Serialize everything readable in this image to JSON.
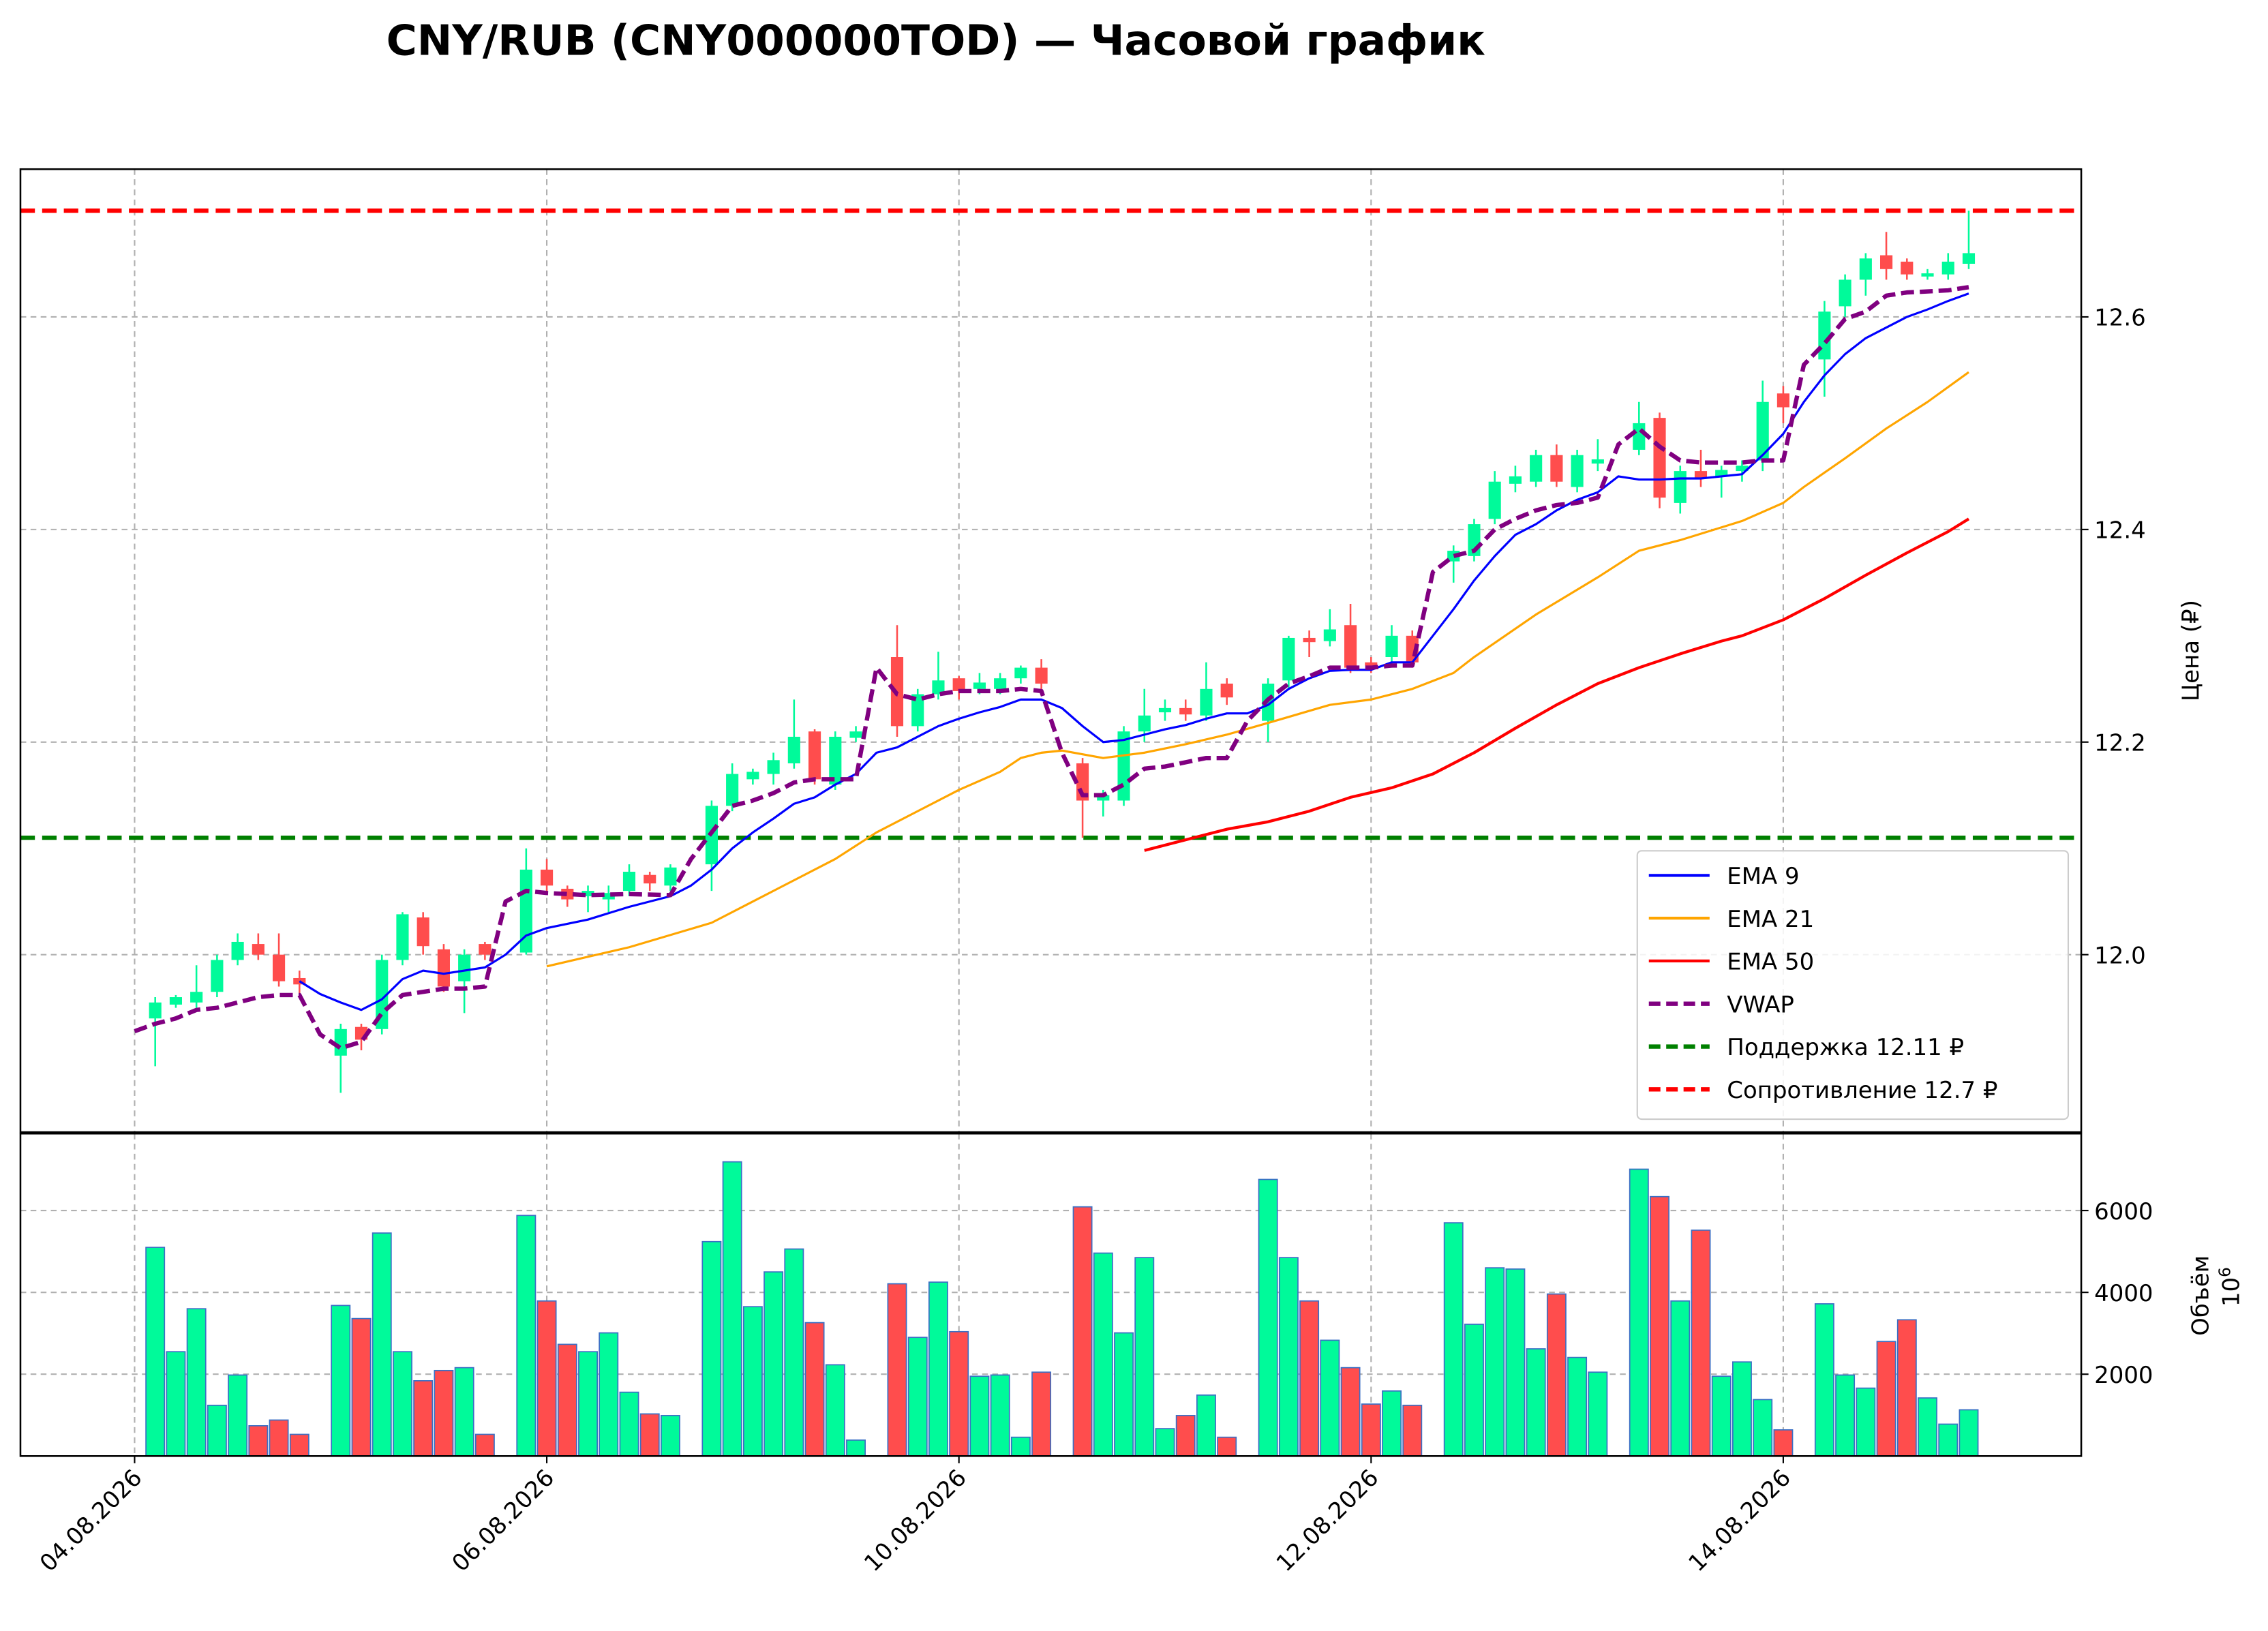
{
  "chart_data": {
    "type": "candlestick",
    "title": "CNY/RUB (CNY000000TOD) — Часовой график",
    "ylabel": "Цена (₽)",
    "x": [
      0,
      1,
      2,
      3,
      4,
      5,
      6,
      7,
      8,
      9,
      10,
      11,
      12,
      13,
      14,
      15,
      16,
      17,
      18,
      19,
      20,
      21,
      22,
      23,
      24,
      25,
      26,
      27,
      28,
      29,
      30,
      31,
      32,
      33,
      34,
      35,
      36,
      37,
      38,
      39,
      40,
      41,
      42,
      43,
      44,
      45,
      46,
      47,
      48,
      49,
      50,
      51,
      52,
      53,
      54,
      55,
      56,
      57,
      58,
      59,
      60,
      61,
      62,
      63,
      64,
      65,
      66,
      67,
      68,
      69,
      70,
      71,
      72,
      73,
      74,
      75,
      76,
      77,
      78,
      79,
      80,
      81,
      82,
      83,
      84,
      85,
      86,
      87,
      88,
      89
    ],
    "xlim": [
      -5.54,
      94.46
    ],
    "xticks": [
      {
        "value": 0,
        "label": "04.08.2026"
      },
      {
        "value": 20,
        "label": "06.08.2026"
      },
      {
        "value": 40,
        "label": "10.08.2026"
      },
      {
        "value": 60,
        "label": "12.08.2026"
      },
      {
        "value": 80,
        "label": "14.08.2026"
      }
    ],
    "ylim": [
      11.833,
      12.739
    ],
    "yticks": [
      {
        "value": 12.0,
        "label": "12.0"
      },
      12.2,
      12.4,
      12.6
    ],
    "grid": true,
    "up_color": "#00fa9a",
    "down_color": "#ff4d4d",
    "open": [
      null,
      11.94,
      11.953,
      11.955,
      11.965,
      11.995,
      12.01,
      12.0,
      11.978,
      null,
      11.905,
      11.932,
      11.93,
      11.995,
      12.035,
      12.005,
      11.975,
      12.01,
      null,
      12.002,
      12.08,
      12.062,
      12.055,
      12.052,
      12.06,
      12.075,
      12.065,
      null,
      12.085,
      12.14,
      12.165,
      12.17,
      12.18,
      12.21,
      12.16,
      12.204,
      null,
      12.28,
      12.215,
      12.245,
      12.26,
      12.25,
      12.25,
      12.26,
      12.27,
      null,
      12.18,
      12.145,
      12.145,
      12.21,
      12.228,
      12.232,
      12.225,
      12.255,
      null,
      12.22,
      12.258,
      12.298,
      12.295,
      12.31,
      12.275,
      12.28,
      12.3,
      null,
      12.37,
      12.375,
      12.41,
      12.443,
      12.445,
      12.47,
      12.44,
      12.462,
      null,
      12.475,
      12.505,
      12.425,
      12.455,
      12.45,
      12.455,
      12.465,
      12.528,
      null,
      12.56,
      12.61,
      12.635,
      12.658,
      12.652,
      12.638,
      12.64,
      12.65
    ],
    "high": [
      null,
      11.96,
      11.962,
      11.99,
      12.0,
      12.02,
      12.02,
      12.02,
      11.985,
      null,
      11.935,
      11.935,
      12.0,
      12.04,
      12.04,
      12.01,
      12.005,
      12.012,
      null,
      12.1,
      12.09,
      12.065,
      12.065,
      12.065,
      12.085,
      12.078,
      12.085,
      null,
      12.145,
      12.18,
      12.175,
      12.19,
      12.24,
      12.212,
      12.21,
      12.215,
      null,
      12.31,
      12.25,
      12.285,
      12.262,
      12.265,
      12.265,
      12.272,
      12.278,
      null,
      12.185,
      12.155,
      12.215,
      12.25,
      12.24,
      12.24,
      12.275,
      12.26,
      null,
      12.26,
      12.3,
      12.305,
      12.325,
      12.33,
      12.28,
      12.31,
      12.305,
      null,
      12.385,
      12.41,
      12.455,
      12.46,
      12.475,
      12.48,
      12.475,
      12.485,
      null,
      12.52,
      12.51,
      12.46,
      12.475,
      12.46,
      12.465,
      12.54,
      12.535,
      null,
      12.615,
      12.64,
      12.66,
      12.68,
      12.655,
      12.645,
      12.66,
      12.7
    ],
    "low": [
      null,
      11.895,
      11.95,
      11.95,
      11.96,
      11.99,
      11.995,
      11.97,
      11.962,
      null,
      11.87,
      11.91,
      11.925,
      11.99,
      12.0,
      11.965,
      11.945,
      11.995,
      null,
      12.0,
      12.06,
      12.045,
      12.04,
      12.04,
      12.055,
      12.06,
      12.06,
      null,
      12.06,
      12.135,
      12.16,
      12.16,
      12.175,
      12.16,
      12.155,
      12.2,
      null,
      12.205,
      12.21,
      12.24,
      12.24,
      12.245,
      12.245,
      12.255,
      12.25,
      null,
      12.11,
      12.13,
      12.14,
      12.2,
      12.22,
      12.22,
      12.22,
      12.235,
      null,
      12.2,
      12.25,
      12.28,
      12.29,
      12.265,
      12.265,
      12.27,
      12.27,
      null,
      12.35,
      12.37,
      12.405,
      12.435,
      12.44,
      12.44,
      12.435,
      12.455,
      null,
      12.47,
      12.42,
      12.415,
      12.44,
      12.43,
      12.445,
      12.455,
      12.5,
      null,
      12.525,
      12.6,
      12.62,
      12.635,
      12.635,
      12.635,
      12.635,
      12.645
    ],
    "close": [
      null,
      11.955,
      11.96,
      11.965,
      11.995,
      12.012,
      12.0,
      11.975,
      11.972,
      null,
      11.93,
      11.92,
      11.995,
      12.038,
      12.008,
      11.97,
      12.0,
      12.0,
      null,
      12.08,
      12.065,
      12.052,
      12.06,
      12.058,
      12.078,
      12.067,
      12.082,
      null,
      12.14,
      12.17,
      12.172,
      12.183,
      12.205,
      12.165,
      12.205,
      12.21,
      null,
      12.215,
      12.245,
      12.258,
      12.248,
      12.256,
      12.26,
      12.27,
      12.255,
      null,
      12.145,
      12.15,
      12.21,
      12.225,
      12.232,
      12.226,
      12.25,
      12.242,
      null,
      12.255,
      12.298,
      12.294,
      12.306,
      12.27,
      12.272,
      12.3,
      12.275,
      null,
      12.38,
      12.405,
      12.445,
      12.45,
      12.47,
      12.445,
      12.47,
      12.466,
      null,
      12.5,
      12.43,
      12.455,
      12.448,
      12.456,
      12.46,
      12.52,
      12.515,
      null,
      12.605,
      12.635,
      12.655,
      12.645,
      12.64,
      12.641,
      12.652,
      12.66
    ],
    "lines": [
      {
        "name": "EMA 9",
        "color": "#0000ff",
        "style": "solid",
        "width": 1.5,
        "x": [
          8,
          9,
          10,
          11,
          12,
          13,
          14,
          15,
          16,
          17,
          18,
          19,
          20,
          22,
          24,
          26,
          27,
          28,
          29,
          30,
          31,
          32,
          33,
          34,
          35,
          36,
          37,
          38,
          39,
          40,
          41,
          42,
          43,
          44,
          45,
          46,
          47,
          48,
          49,
          50,
          51,
          52,
          53,
          54,
          55,
          56,
          57,
          58,
          59,
          60,
          61,
          62,
          63,
          64,
          65,
          66,
          67,
          68,
          69,
          70,
          71,
          72,
          73,
          74,
          75,
          76,
          77,
          78,
          79,
          80,
          81,
          82,
          83,
          84,
          85,
          86,
          87,
          88,
          89
        ],
        "values": [
          11.975,
          11.963,
          11.955,
          11.948,
          11.958,
          11.977,
          11.985,
          11.982,
          11.985,
          11.988,
          12.0,
          12.018,
          12.025,
          12.033,
          12.045,
          12.055,
          12.065,
          12.08,
          12.1,
          12.115,
          12.128,
          12.142,
          12.148,
          12.16,
          12.17,
          12.19,
          12.195,
          12.205,
          12.215,
          12.222,
          12.228,
          12.233,
          12.24,
          12.24,
          12.232,
          12.215,
          12.2,
          12.202,
          12.207,
          12.212,
          12.216,
          12.222,
          12.227,
          12.227,
          12.235,
          12.25,
          12.26,
          12.267,
          12.268,
          12.268,
          12.275,
          12.275,
          12.3,
          12.325,
          12.352,
          12.375,
          12.395,
          12.405,
          12.418,
          12.428,
          12.435,
          12.45,
          12.447,
          12.447,
          12.448,
          12.448,
          12.45,
          12.452,
          12.47,
          12.49,
          12.52,
          12.545,
          12.565,
          12.58,
          12.59,
          12.6,
          12.607,
          12.615,
          12.622
        ]
      },
      {
        "name": "EMA 21",
        "color": "#ffa500",
        "style": "solid",
        "width": 1.5,
        "x": [
          20,
          24,
          28,
          30,
          32,
          34,
          36,
          38,
          40,
          42,
          43,
          44,
          45,
          47,
          49,
          51,
          53,
          55,
          58,
          60,
          62,
          64,
          65,
          68,
          71,
          73,
          75,
          78,
          80,
          81,
          83,
          85,
          87,
          89
        ],
        "values": [
          11.989,
          12.007,
          12.03,
          12.05,
          12.07,
          12.09,
          12.115,
          12.135,
          12.155,
          12.172,
          12.185,
          12.19,
          12.192,
          12.185,
          12.19,
          12.198,
          12.207,
          12.218,
          12.235,
          12.24,
          12.25,
          12.265,
          12.28,
          12.32,
          12.355,
          12.38,
          12.39,
          12.408,
          12.425,
          12.44,
          12.467,
          12.495,
          12.52,
          12.548
        ]
      },
      {
        "name": "EMA 50",
        "color": "#ff0000",
        "style": "solid",
        "width": 2,
        "x": [
          49,
          51,
          53,
          55,
          57,
          59,
          61,
          63,
          65,
          67,
          69,
          71,
          73,
          75,
          77,
          78,
          80,
          82,
          84,
          86,
          88,
          89
        ],
        "values": [
          12.098,
          12.108,
          12.118,
          12.125,
          12.135,
          12.148,
          12.157,
          12.17,
          12.19,
          12.213,
          12.235,
          12.255,
          12.27,
          12.283,
          12.295,
          12.3,
          12.315,
          12.335,
          12.357,
          12.378,
          12.398,
          12.41
        ]
      },
      {
        "name": "VWAP",
        "color": "#800080",
        "style": "dashed",
        "width": 3,
        "x": [
          0,
          1,
          2,
          3,
          4,
          5,
          6,
          7,
          8,
          9,
          10,
          11,
          12,
          13,
          14,
          15,
          16,
          17,
          18,
          19,
          20,
          22,
          24,
          26,
          27,
          28,
          29,
          30,
          31,
          32,
          33,
          35,
          36,
          37,
          38,
          39,
          40,
          42,
          43,
          44,
          45,
          46,
          47,
          48,
          49,
          50,
          52,
          53,
          54,
          55,
          56,
          57,
          58,
          60,
          61,
          62,
          63,
          64,
          65,
          66,
          67,
          68,
          69,
          70,
          71,
          72,
          73,
          74,
          75,
          76,
          78,
          79,
          80,
          81,
          82,
          83,
          84,
          85,
          86,
          88,
          89
        ],
        "values": [
          11.928,
          11.935,
          11.94,
          11.948,
          11.95,
          11.955,
          11.96,
          11.962,
          11.962,
          11.925,
          11.912,
          11.918,
          11.945,
          11.962,
          11.965,
          11.968,
          11.968,
          11.97,
          12.05,
          12.06,
          12.058,
          12.056,
          12.057,
          12.056,
          12.09,
          12.115,
          12.14,
          12.145,
          12.152,
          12.162,
          12.165,
          12.165,
          12.27,
          12.245,
          12.24,
          12.245,
          12.248,
          12.248,
          12.25,
          12.248,
          12.19,
          12.15,
          12.15,
          12.16,
          12.175,
          12.177,
          12.185,
          12.185,
          12.22,
          12.24,
          12.255,
          12.262,
          12.27,
          12.27,
          12.272,
          12.272,
          12.36,
          12.375,
          12.38,
          12.4,
          12.41,
          12.418,
          12.423,
          12.425,
          12.43,
          12.48,
          12.495,
          12.478,
          12.465,
          12.463,
          12.463,
          12.465,
          12.465,
          12.555,
          12.575,
          12.598,
          12.605,
          12.62,
          12.623,
          12.625,
          12.628
        ]
      }
    ],
    "hlines": [
      {
        "name": "Поддержка 12.11 ₽",
        "value": 12.11,
        "color": "#008000"
      },
      {
        "name": "Сопротивление 12.7 ₽",
        "value": 12.7,
        "color": "#ff0000"
      }
    ],
    "legend": "lower right",
    "volume": {
      "ylabel": "Объём",
      "offset_base": "10",
      "offset_exponent": "6",
      "ylim": [
        0,
        7880
      ],
      "yticks": [
        2000,
        4000,
        6000
      ],
      "values": [
        null,
        5100,
        2550,
        3600,
        1240,
        1980,
        740,
        880,
        530,
        null,
        3680,
        3360,
        5450,
        2550,
        1840,
        2090,
        2160,
        530,
        null,
        5880,
        3790,
        2730,
        2550,
        3010,
        1560,
        1030,
        990,
        null,
        5240,
        7190,
        3650,
        4500,
        5060,
        3260,
        2230,
        390,
        null,
        4210,
        2900,
        4250,
        3040,
        1950,
        1980,
        460,
        2050,
        null,
        6090,
        4960,
        3010,
        4850,
        670,
        990,
        1490,
        460,
        null,
        6760,
        4850,
        3790,
        2830,
        2160,
        1270,
        1590,
        1240,
        null,
        5700,
        3220,
        4600,
        4570,
        2620,
        3960,
        2410,
        2050,
        null,
        7010,
        6340,
        3790,
        5520,
        1950,
        2300,
        1380,
        640,
        null,
        3720,
        1980,
        1660,
        2800,
        3330,
        1420,
        780,
        1130
      ]
    }
  }
}
